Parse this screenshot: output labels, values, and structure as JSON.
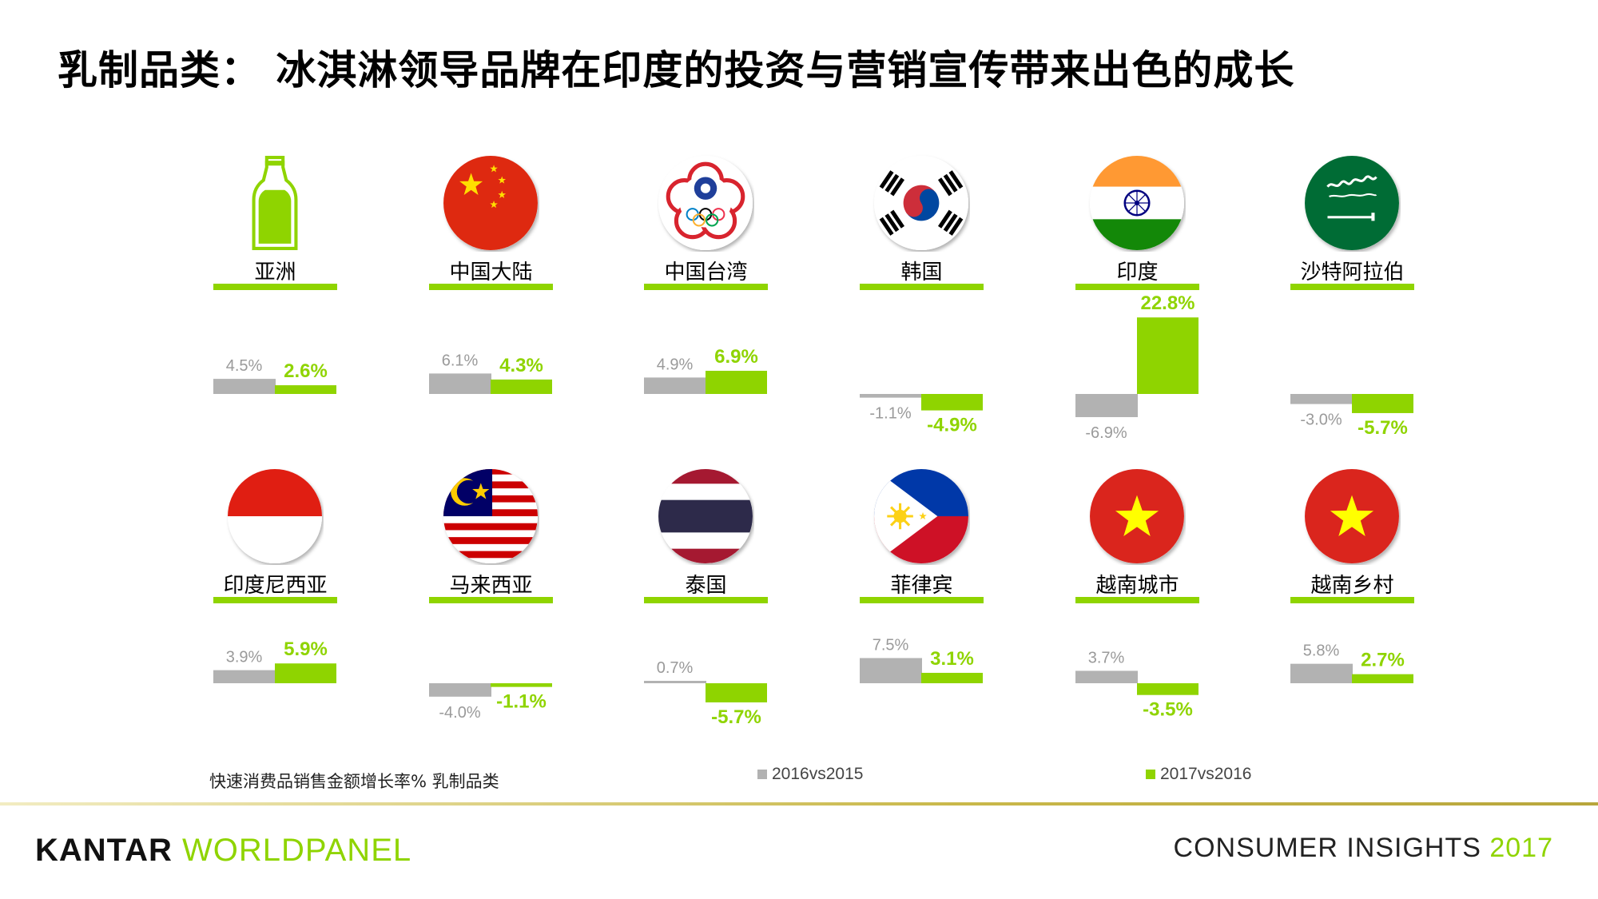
{
  "title": "乳制品类： 冰淇淋领导品牌在印度的投资与营销宣传带来出色的成长",
  "colors": {
    "accent": "#8fd400",
    "grey": "#b2b2b2",
    "gold": "#c9b84a"
  },
  "chart_data": {
    "type": "bar",
    "series": [
      {
        "name": "2016vs2015",
        "color": "#b2b2b2"
      },
      {
        "name": "2017vs2016",
        "color": "#8fd400"
      }
    ],
    "panels": [
      {
        "name": "亚洲",
        "icon": "bottle-icon",
        "values": [
          4.5,
          2.6
        ],
        "labels": [
          "4.5%",
          "2.6%"
        ]
      },
      {
        "name": "中国大陆",
        "icon": "china-flag-icon",
        "values": [
          6.1,
          4.3
        ],
        "labels": [
          "6.1%",
          "4.3%"
        ]
      },
      {
        "name": "中国台湾",
        "icon": "chinese-taipei-flag-icon",
        "values": [
          4.9,
          6.9
        ],
        "labels": [
          "4.9%",
          "6.9%"
        ]
      },
      {
        "name": "韩国",
        "icon": "korea-flag-icon",
        "values": [
          -1.1,
          -4.9
        ],
        "labels": [
          "-1.1%",
          "-4.9%"
        ]
      },
      {
        "name": "印度",
        "icon": "india-flag-icon",
        "values": [
          -6.9,
          22.8
        ],
        "labels": [
          "-6.9%",
          "22.8%"
        ]
      },
      {
        "name": "沙特阿拉伯",
        "icon": "saudi-flag-icon",
        "values": [
          -3.0,
          -5.7
        ],
        "labels": [
          "-3.0%",
          "-5.7%"
        ]
      },
      {
        "name": "印度尼西亚",
        "icon": "indonesia-flag-icon",
        "values": [
          3.9,
          5.9
        ],
        "labels": [
          "3.9%",
          "5.9%"
        ]
      },
      {
        "name": "马来西亚",
        "icon": "malaysia-flag-icon",
        "values": [
          -4.0,
          -1.1
        ],
        "labels": [
          "-4.0%",
          "-1.1%"
        ]
      },
      {
        "name": "泰国",
        "icon": "thailand-flag-icon",
        "values": [
          0.7,
          -5.7
        ],
        "labels": [
          "0.7%",
          "-5.7%"
        ]
      },
      {
        "name": "菲律宾",
        "icon": "philippines-flag-icon",
        "values": [
          7.5,
          3.1
        ],
        "labels": [
          "7.5%",
          "3.1%"
        ]
      },
      {
        "name": "越南城市",
        "icon": "vietnam-flag-icon",
        "values": [
          3.7,
          -3.5
        ],
        "labels": [
          "3.7%",
          "-3.5%"
        ]
      },
      {
        "name": "越南乡村",
        "icon": "vietnam-flag-icon",
        "values": [
          5.8,
          2.7
        ],
        "labels": [
          "5.8%",
          "2.7%"
        ]
      }
    ]
  },
  "footer": {
    "metric_label": "快速消费品销售金额增长率%  乳制品类",
    "legend_2016": "2016vs2015",
    "legend_2017": "2017vs2016",
    "brand_kantar": "KANTAR",
    "brand_worldpanel": "WORLDPANEL",
    "consumer_insights": "CONSUMER INSIGHTS",
    "year": "2017"
  }
}
